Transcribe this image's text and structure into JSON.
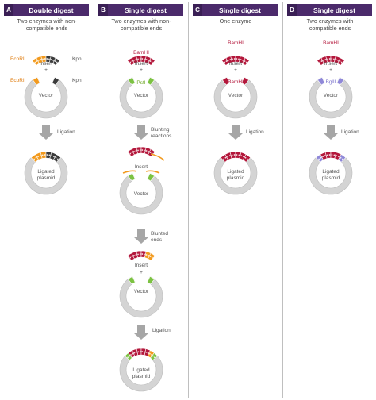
{
  "panels": [
    {
      "letter": "A",
      "title": "Double digest",
      "subtitle": "Two enzymes with non-compatible ends"
    },
    {
      "letter": "B",
      "title": "Single digest",
      "subtitle": "Two enzymes with non-compatible ends"
    },
    {
      "letter": "C",
      "title": "Single digest",
      "subtitle": "One enzyme"
    },
    {
      "letter": "D",
      "title": "Single digest",
      "subtitle": "Two enzymes with compatible ends"
    }
  ],
  "labels": {
    "insert": "Insert",
    "vector": "Vector",
    "ligated": "Ligated",
    "plasmid": "plasmid",
    "ligation": "Ligation",
    "blunting_1": "Blunting",
    "blunting_2": "reactions",
    "blunted_1": "Blunted",
    "blunted_2": "ends",
    "plus": "+",
    "ecori": "EcoRI",
    "kpni": "KpnI",
    "bamhi": "BamHI",
    "psti": "PstI",
    "bglii": "BglII"
  },
  "colors": {
    "header_bg": "#4b2a6b",
    "orange": "#f29a1e",
    "dark": "#3b3b3b",
    "crimson": "#b3173b",
    "green": "#7cc242",
    "lavender": "#8f88d8",
    "ring": "#d4d4d4",
    "arrow": "#a6a6a6"
  }
}
